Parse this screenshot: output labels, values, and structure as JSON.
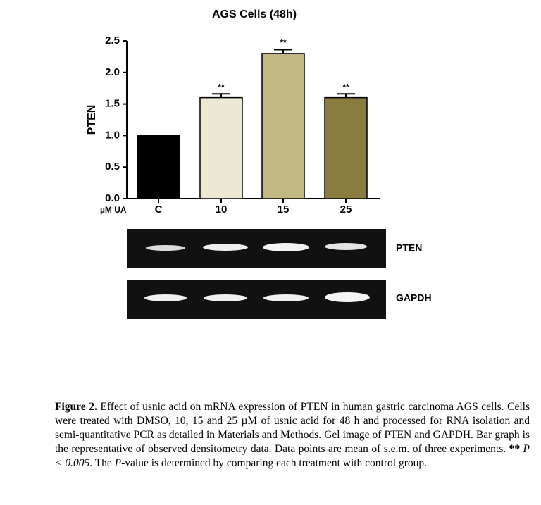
{
  "chart_data": {
    "type": "bar",
    "title": "AGS Cells (48h)",
    "y_label": "PTEN",
    "x_label": "µM UA",
    "categories": [
      "C",
      "10",
      "15",
      "25"
    ],
    "values": [
      1.0,
      1.6,
      2.3,
      1.6
    ],
    "errors": [
      0,
      0.06,
      0.06,
      0.06
    ],
    "annotations": [
      null,
      "**",
      "**",
      "**"
    ],
    "colors": [
      "#000000",
      "#ede8d2",
      "#c3b783",
      "#8a7b3e"
    ],
    "ylim": [
      0,
      2.5
    ],
    "yticks": [
      {
        "value": 0,
        "label": "0.0"
      },
      0.5,
      {
        "value": 1,
        "label": "1.0"
      },
      1.5,
      {
        "value": 2,
        "label": "2.0"
      },
      2.5
    ]
  },
  "gel": {
    "rows": [
      {
        "label": "PTEN"
      },
      {
        "label": "GAPDH"
      }
    ]
  },
  "caption": {
    "label": "Figure 2.",
    "text_1": " Effect of usnic acid on mRNA expression of PTEN in human gastric carcinoma AGS cells. Cells were treated with DMSO, 10, 15 and 25 µM of usnic acid for 48 h and processed for RNA isolation and semi-quantitative PCR as detailed in Materials and Methods. Gel image of PTEN and GAPDH. Bar graph is the representative of observed densitometry data. Data points are mean of s.e.m. of three experiments. ",
    "stars": "**",
    "p_value": "P < 0.005",
    "text_2": ". The ",
    "p": "P",
    "text_3": "-value is determined by comparing each treatment with control group."
  }
}
